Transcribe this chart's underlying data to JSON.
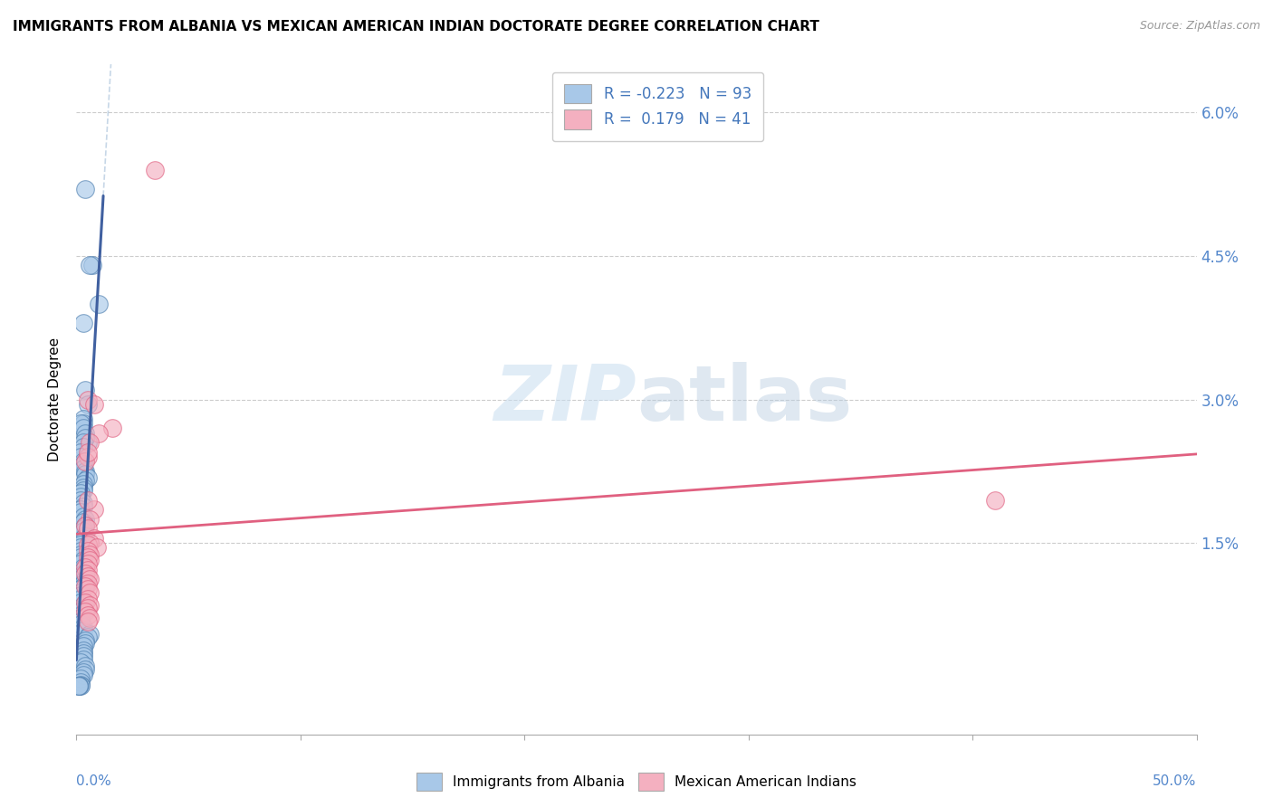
{
  "title": "IMMIGRANTS FROM ALBANIA VS MEXICAN AMERICAN INDIAN DOCTORATE DEGREE CORRELATION CHART",
  "source": "Source: ZipAtlas.com",
  "ylabel": "Doctorate Degree",
  "y_ticks": [
    0.0,
    0.015,
    0.03,
    0.045,
    0.06
  ],
  "y_tick_labels": [
    "",
    "1.5%",
    "3.0%",
    "4.5%",
    "6.0%"
  ],
  "x_lim": [
    0.0,
    0.5
  ],
  "y_lim": [
    -0.005,
    0.065
  ],
  "legend_blue_r": "-0.223",
  "legend_blue_n": "93",
  "legend_pink_r": "0.179",
  "legend_pink_n": "41",
  "legend_label_blue": "Immigrants from Albania",
  "legend_label_pink": "Mexican American Indians",
  "color_blue": "#a8c8e8",
  "color_pink": "#f4b0c0",
  "color_blue_dark": "#5080b0",
  "color_pink_dark": "#e06080",
  "watermark_color": "#ddeeff",
  "blue_scatter_x": [
    0.004,
    0.007,
    0.01,
    0.006,
    0.003,
    0.004,
    0.005,
    0.003,
    0.003,
    0.002,
    0.003,
    0.004,
    0.005,
    0.004,
    0.003,
    0.003,
    0.002,
    0.002,
    0.003,
    0.003,
    0.003,
    0.004,
    0.004,
    0.005,
    0.004,
    0.003,
    0.003,
    0.003,
    0.002,
    0.002,
    0.002,
    0.003,
    0.003,
    0.002,
    0.002,
    0.003,
    0.004,
    0.003,
    0.004,
    0.003,
    0.003,
    0.004,
    0.003,
    0.003,
    0.002,
    0.002,
    0.002,
    0.002,
    0.002,
    0.003,
    0.002,
    0.003,
    0.003,
    0.003,
    0.003,
    0.004,
    0.003,
    0.003,
    0.002,
    0.002,
    0.002,
    0.002,
    0.002,
    0.003,
    0.003,
    0.002,
    0.002,
    0.002,
    0.002,
    0.002,
    0.003,
    0.003,
    0.006,
    0.005,
    0.004,
    0.004,
    0.003,
    0.003,
    0.003,
    0.003,
    0.003,
    0.002,
    0.004,
    0.004,
    0.003,
    0.003,
    0.002,
    0.002,
    0.002,
    0.002,
    0.001,
    0.001,
    0.001
  ],
  "blue_scatter_y": [
    0.052,
    0.044,
    0.04,
    0.044,
    0.038,
    0.031,
    0.0295,
    0.028,
    0.0275,
    0.0275,
    0.027,
    0.0265,
    0.0255,
    0.026,
    0.0255,
    0.025,
    0.0245,
    0.024,
    0.0235,
    0.0232,
    0.0228,
    0.0225,
    0.0222,
    0.0218,
    0.0215,
    0.0212,
    0.0208,
    0.0205,
    0.0202,
    0.0198,
    0.0195,
    0.0192,
    0.0188,
    0.0185,
    0.0182,
    0.0178,
    0.0175,
    0.0172,
    0.0168,
    0.0165,
    0.0162,
    0.0158,
    0.0155,
    0.0152,
    0.0148,
    0.0145,
    0.0142,
    0.0138,
    0.0135,
    0.0132,
    0.0128,
    0.0125,
    0.0122,
    0.0118,
    0.0115,
    0.0112,
    0.0108,
    0.0105,
    0.0102,
    0.0098,
    0.0095,
    0.0092,
    0.0088,
    0.0085,
    0.0082,
    0.0078,
    0.0075,
    0.0072,
    0.0068,
    0.0065,
    0.0062,
    0.0058,
    0.0055,
    0.0052,
    0.0048,
    0.0045,
    0.0042,
    0.0038,
    0.0035,
    0.0032,
    0.0028,
    0.0025,
    0.0022,
    0.0018,
    0.0015,
    0.0012,
    0.0008,
    0.0005,
    0.0002,
    0.0001,
    0.0001,
    0.0001,
    0.0001
  ],
  "pink_scatter_x": [
    0.035,
    0.005,
    0.008,
    0.016,
    0.01,
    0.006,
    0.005,
    0.004,
    0.005,
    0.008,
    0.006,
    0.004,
    0.005,
    0.008,
    0.006,
    0.005,
    0.009,
    0.005,
    0.006,
    0.005,
    0.006,
    0.005,
    0.004,
    0.005,
    0.004,
    0.005,
    0.006,
    0.005,
    0.004,
    0.005,
    0.006,
    0.005,
    0.41,
    0.005,
    0.004,
    0.006,
    0.005,
    0.004,
    0.005,
    0.006,
    0.005
  ],
  "pink_scatter_y": [
    0.054,
    0.03,
    0.0295,
    0.027,
    0.0265,
    0.0255,
    0.024,
    0.0235,
    0.0245,
    0.0185,
    0.0175,
    0.0168,
    0.0165,
    0.0155,
    0.015,
    0.0148,
    0.0145,
    0.0142,
    0.0138,
    0.0135,
    0.0132,
    0.0128,
    0.0125,
    0.0122,
    0.0118,
    0.0115,
    0.0112,
    0.0108,
    0.0105,
    0.0102,
    0.0098,
    0.0195,
    0.0195,
    0.0092,
    0.0088,
    0.0085,
    0.0082,
    0.0078,
    0.0075,
    0.0072,
    0.0068
  ]
}
